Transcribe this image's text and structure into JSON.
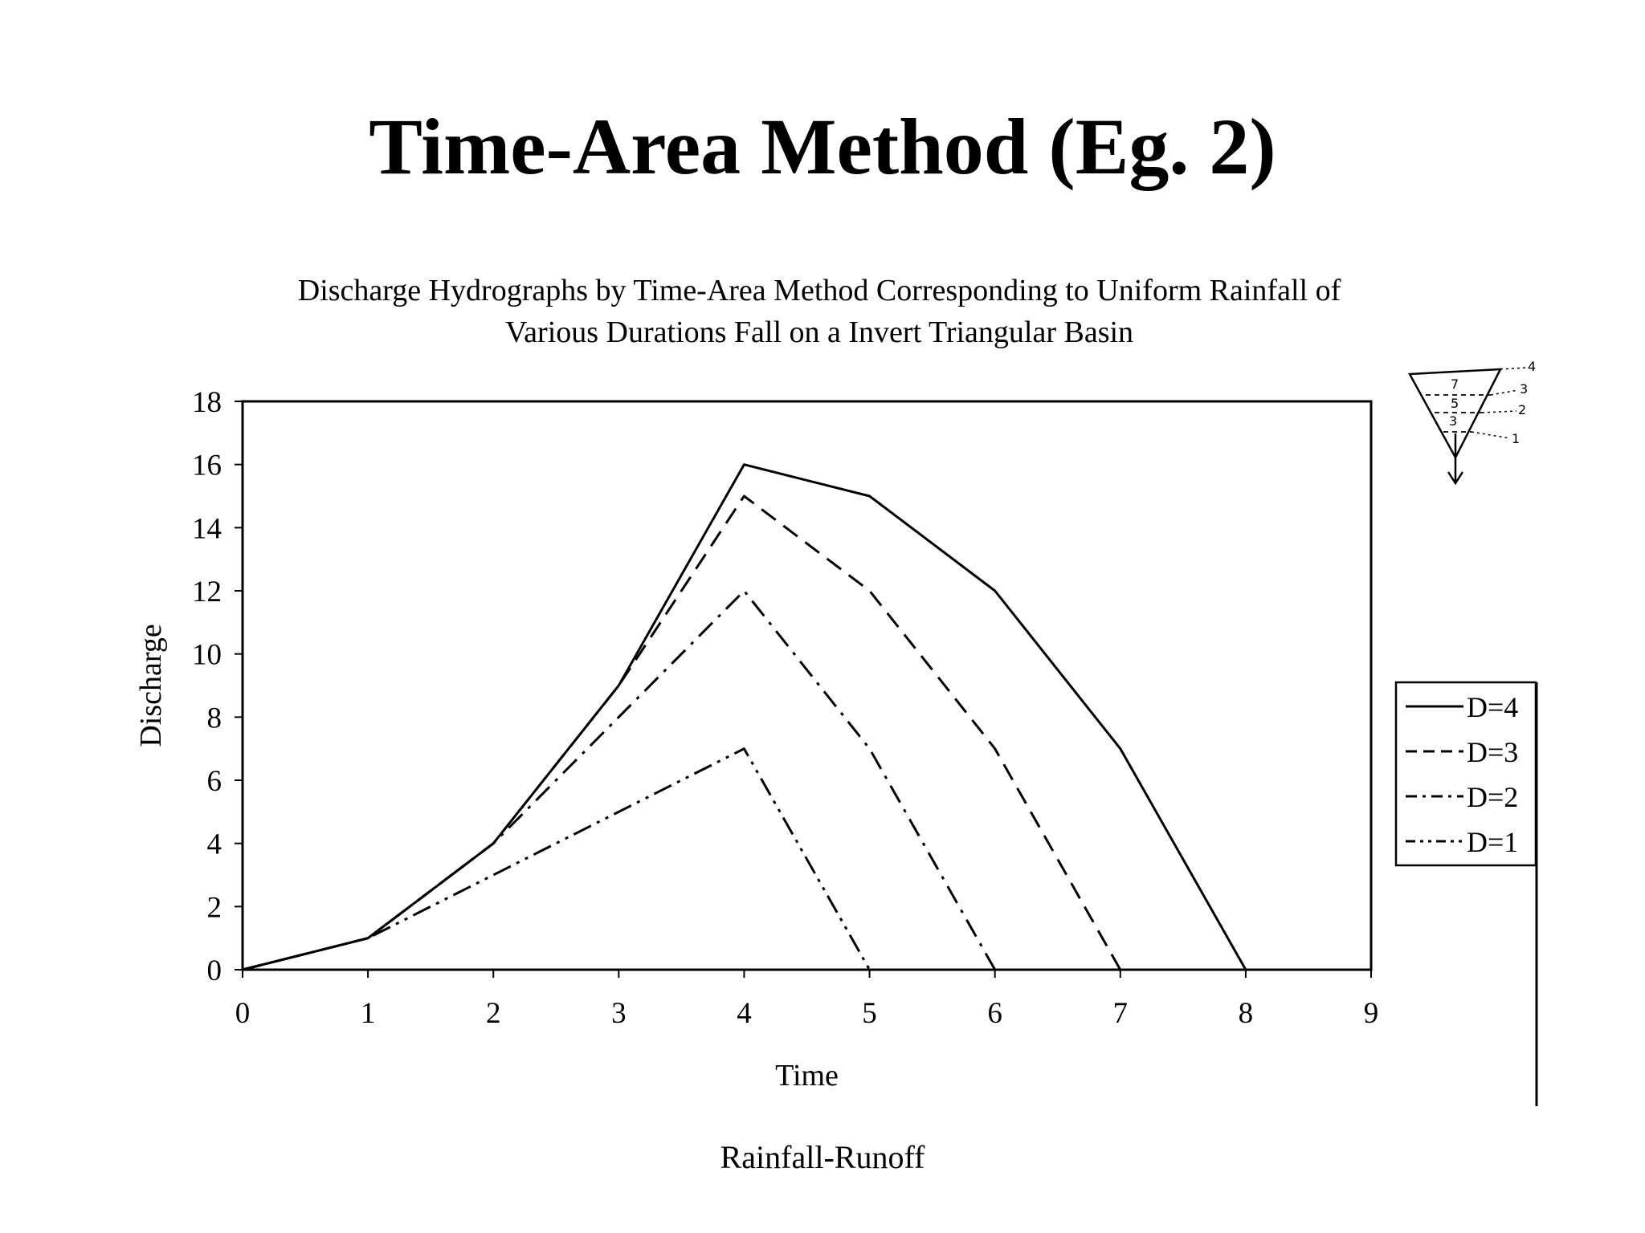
{
  "slide": {
    "title": "Time-Area Method (Eg. 2)",
    "footer": "Rainfall-Runoff"
  },
  "chart_data": {
    "type": "line",
    "title_lines": [
      "Discharge Hydrographs by Time-Area Method Corresponding to Uniform Rainfall of",
      "Various Durations Fall on a Invert Triangular Basin"
    ],
    "xlabel": "Time",
    "ylabel": "Discharge",
    "xlim": [
      0,
      9
    ],
    "ylim": [
      0,
      18
    ],
    "xticks": [
      0,
      1,
      2,
      3,
      4,
      5,
      6,
      7,
      8,
      9
    ],
    "yticks": [
      0,
      2,
      4,
      6,
      8,
      10,
      12,
      14,
      16,
      18
    ],
    "grid": false,
    "legend_position": "right",
    "series": [
      {
        "name": "D=4",
        "dash": "solid",
        "x": [
          0,
          1,
          2,
          3,
          4,
          5,
          6,
          7,
          8
        ],
        "y": [
          0,
          1,
          4,
          9,
          16,
          15,
          12,
          7,
          0
        ]
      },
      {
        "name": "D=3",
        "dash": "dashed",
        "x": [
          0,
          1,
          2,
          3,
          4,
          5,
          6,
          7
        ],
        "y": [
          0,
          1,
          4,
          9,
          15,
          12,
          7,
          0
        ]
      },
      {
        "name": "D=2",
        "dash": "dash-dot",
        "x": [
          0,
          1,
          2,
          3,
          4,
          5,
          6
        ],
        "y": [
          0,
          1,
          4,
          8,
          12,
          7,
          0
        ]
      },
      {
        "name": "D=1",
        "dash": "dash-dot-dot",
        "x": [
          0,
          1,
          2,
          3,
          4,
          5
        ],
        "y": [
          0,
          1,
          3,
          5,
          7,
          0
        ]
      }
    ]
  },
  "basin_sketch": {
    "zone_labels": [
      "7",
      "5",
      "3"
    ],
    "time_labels": [
      "4",
      "3",
      "2",
      "1"
    ]
  }
}
